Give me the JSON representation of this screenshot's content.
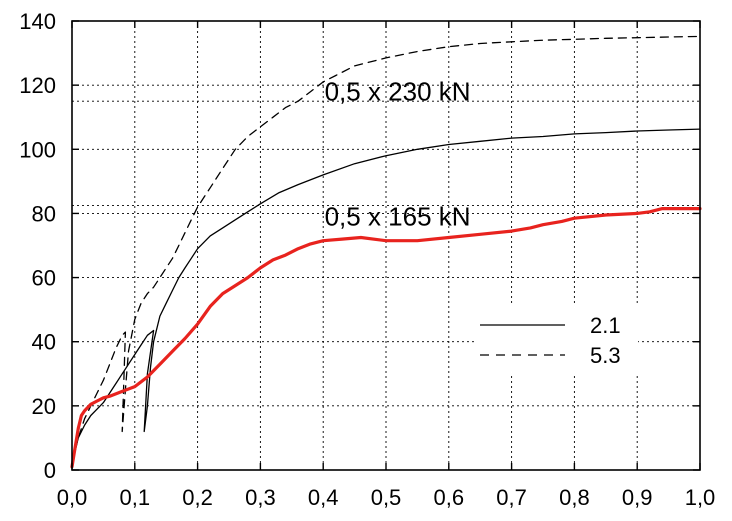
{
  "chart_data": {
    "type": "line",
    "xlim": [
      0,
      1.0
    ],
    "ylim": [
      0,
      140
    ],
    "x_ticks": [
      {
        "value": 0.0,
        "label": "0,0"
      },
      {
        "value": 0.1,
        "label": "0,1"
      },
      {
        "value": 0.2,
        "label": "0,2"
      },
      {
        "value": 0.3,
        "label": "0,3"
      },
      {
        "value": 0.4,
        "label": "0,4"
      },
      {
        "value": 0.5,
        "label": "0,5"
      },
      {
        "value": 0.6,
        "label": "0,6"
      },
      {
        "value": 0.7,
        "label": "0,7"
      },
      {
        "value": 0.8,
        "label": "0,8"
      },
      {
        "value": 0.9,
        "label": "0,9"
      },
      {
        "value": 1.0,
        "label": "1,0"
      }
    ],
    "y_ticks": [
      {
        "value": 0,
        "label": "0"
      },
      {
        "value": 20,
        "label": "20"
      },
      {
        "value": 40,
        "label": "40"
      },
      {
        "value": 60,
        "label": "60"
      },
      {
        "value": 80,
        "label": "80"
      },
      {
        "value": 100,
        "label": "100"
      },
      {
        "value": 120,
        "label": "120"
      },
      {
        "value": 140,
        "label": "140"
      }
    ],
    "grid": true,
    "grid_style": "dotted",
    "reference_lines": [
      {
        "y": 115,
        "style": "dotted"
      },
      {
        "y": 82.5,
        "style": "dotted"
      }
    ],
    "annotations": [
      {
        "text": "0,5 x 230 kN",
        "x": 0.45,
        "y": 118
      },
      {
        "text": "0,5 x 165 kN",
        "x": 0.45,
        "y": 79
      }
    ],
    "legend": {
      "position": "right",
      "entries": [
        {
          "label": "2.1",
          "style": "solid"
        },
        {
          "label": "5.3",
          "style": "dashed"
        }
      ]
    },
    "series": [
      {
        "name": "2.1",
        "style": "solid",
        "color": "#000000",
        "width": 1.3,
        "x": [
          0.0,
          0.005,
          0.01,
          0.02,
          0.03,
          0.04,
          0.05,
          0.06,
          0.07,
          0.08,
          0.09,
          0.1,
          0.11,
          0.12,
          0.13,
          0.12,
          0.115,
          0.12,
          0.125,
          0.13,
          0.14,
          0.15,
          0.16,
          0.17,
          0.18,
          0.19,
          0.2,
          0.21,
          0.22,
          0.24,
          0.26,
          0.28,
          0.3,
          0.33,
          0.36,
          0.4,
          0.45,
          0.5,
          0.55,
          0.6,
          0.65,
          0.7,
          0.75,
          0.8,
          0.85,
          0.9,
          0.95,
          1.0
        ],
        "y": [
          2,
          6,
          10,
          14,
          17,
          19,
          21,
          24,
          27,
          30,
          33,
          36,
          39,
          42,
          43.5,
          30,
          12,
          20,
          32,
          40,
          48,
          52,
          56,
          60,
          63,
          66,
          69,
          71,
          73,
          75.5,
          78,
          80.5,
          83,
          86.5,
          89,
          92,
          95.5,
          98,
          100,
          101.5,
          102.5,
          103.5,
          104,
          104.8,
          105.2,
          105.7,
          106,
          106.3
        ]
      },
      {
        "name": "5.3",
        "style": "dashed",
        "color": "#000000",
        "width": 1.3,
        "x": [
          0.0,
          0.01,
          0.02,
          0.03,
          0.04,
          0.05,
          0.06,
          0.07,
          0.08,
          0.085,
          0.08,
          0.085,
          0.09,
          0.1,
          0.11,
          0.12,
          0.13,
          0.14,
          0.15,
          0.16,
          0.17,
          0.18,
          0.19,
          0.2,
          0.22,
          0.24,
          0.26,
          0.28,
          0.3,
          0.32,
          0.34,
          0.36,
          0.38,
          0.4,
          0.42,
          0.45,
          0.5,
          0.55,
          0.6,
          0.65,
          0.7,
          0.75,
          0.8,
          0.85,
          0.9,
          0.95,
          1.0
        ],
        "y": [
          2,
          10,
          16,
          20,
          24,
          28,
          33,
          38,
          42,
          43,
          12,
          25,
          37,
          47,
          52,
          55,
          57,
          60,
          63,
          66,
          70,
          74,
          78,
          82,
          88,
          94,
          100,
          104,
          107,
          110,
          113,
          115,
          118,
          121,
          123,
          126,
          128.5,
          130.5,
          132,
          133,
          133.5,
          134,
          134.3,
          134.6,
          134.8,
          135,
          135.2
        ]
      },
      {
        "name": "",
        "style": "solid",
        "color": "#e8231e",
        "width": 3.2,
        "x": [
          0.0,
          0.005,
          0.01,
          0.015,
          0.02,
          0.03,
          0.04,
          0.05,
          0.06,
          0.08,
          0.1,
          0.12,
          0.14,
          0.16,
          0.18,
          0.2,
          0.22,
          0.24,
          0.26,
          0.28,
          0.3,
          0.32,
          0.34,
          0.36,
          0.38,
          0.4,
          0.43,
          0.46,
          0.5,
          0.55,
          0.6,
          0.65,
          0.7,
          0.73,
          0.75,
          0.78,
          0.8,
          0.85,
          0.9,
          0.92,
          0.94,
          0.96,
          0.98,
          1.0
        ],
        "y": [
          1,
          7,
          13,
          17,
          18.5,
          20.5,
          21.5,
          22.5,
          23,
          24.5,
          26,
          29,
          33,
          37,
          41,
          45.5,
          51,
          55,
          57.5,
          60,
          63,
          65.5,
          67,
          69,
          70.5,
          71.5,
          72,
          72.5,
          71.5,
          71.5,
          72.5,
          73.5,
          74.5,
          75.5,
          76.5,
          77.5,
          78.5,
          79.5,
          80,
          80.5,
          81.5,
          81.5,
          81.5,
          81.5
        ]
      }
    ]
  }
}
